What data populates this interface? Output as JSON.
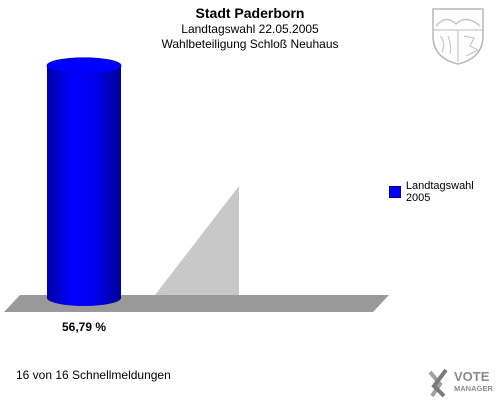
{
  "title": "Stadt Paderborn",
  "subtitle1": "Landtagswahl 22.05.2005",
  "subtitle2": "Wahlbeteiligung Schloß Neuhaus",
  "footer_text": "16 von 16 Schnellmeldungen",
  "logo": {
    "line1": "VOTE",
    "line2": "MANAGER"
  },
  "chart_data": {
    "type": "bar",
    "title": "Stadt Paderborn",
    "subtitle": [
      "Landtagswahl 22.05.2005",
      "Wahlbeteiligung Schloß Neuhaus"
    ],
    "categories": [
      ""
    ],
    "series": [
      {
        "name": "Landtagswahl 2005",
        "values": [
          56.79
        ],
        "labels": [
          "56,79 %"
        ],
        "color": "#0000ff"
      }
    ],
    "ylim": [
      0,
      100
    ],
    "legend": "right",
    "grid": false
  }
}
